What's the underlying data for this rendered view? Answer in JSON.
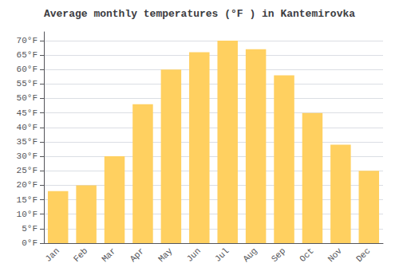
{
  "chart_data": {
    "type": "bar",
    "title": "Average monthly temperatures (°F ) in Kantemirovka",
    "categories": [
      "Jan",
      "Feb",
      "Mar",
      "Apr",
      "May",
      "Jun",
      "Jul",
      "Aug",
      "Sep",
      "Oct",
      "Nov",
      "Dec"
    ],
    "values": [
      18,
      20,
      30,
      48,
      60,
      66,
      70,
      67,
      58,
      45,
      34,
      25
    ],
    "color": "#FFD060",
    "ylim": [
      0,
      73
    ],
    "yticks": [
      {
        "value": 0,
        "label": "0°F"
      },
      {
        "value": 5,
        "label": "5°F"
      },
      {
        "value": 10,
        "label": "10°F"
      },
      {
        "value": 15,
        "label": "15°F"
      },
      {
        "value": 20,
        "label": "20°F"
      },
      {
        "value": 25,
        "label": "25°F"
      },
      {
        "value": 30,
        "label": "30°F"
      },
      {
        "value": 35,
        "label": "35°F"
      },
      {
        "value": 40,
        "label": "40°F"
      },
      {
        "value": 45,
        "label": "45°F"
      },
      {
        "value": 50,
        "label": "50°F"
      },
      {
        "value": 55,
        "label": "55°F"
      },
      {
        "value": 60,
        "label": "60°F"
      },
      {
        "value": 65,
        "label": "65°F"
      },
      {
        "value": 70,
        "label": "70°F"
      }
    ],
    "grid": true
  }
}
